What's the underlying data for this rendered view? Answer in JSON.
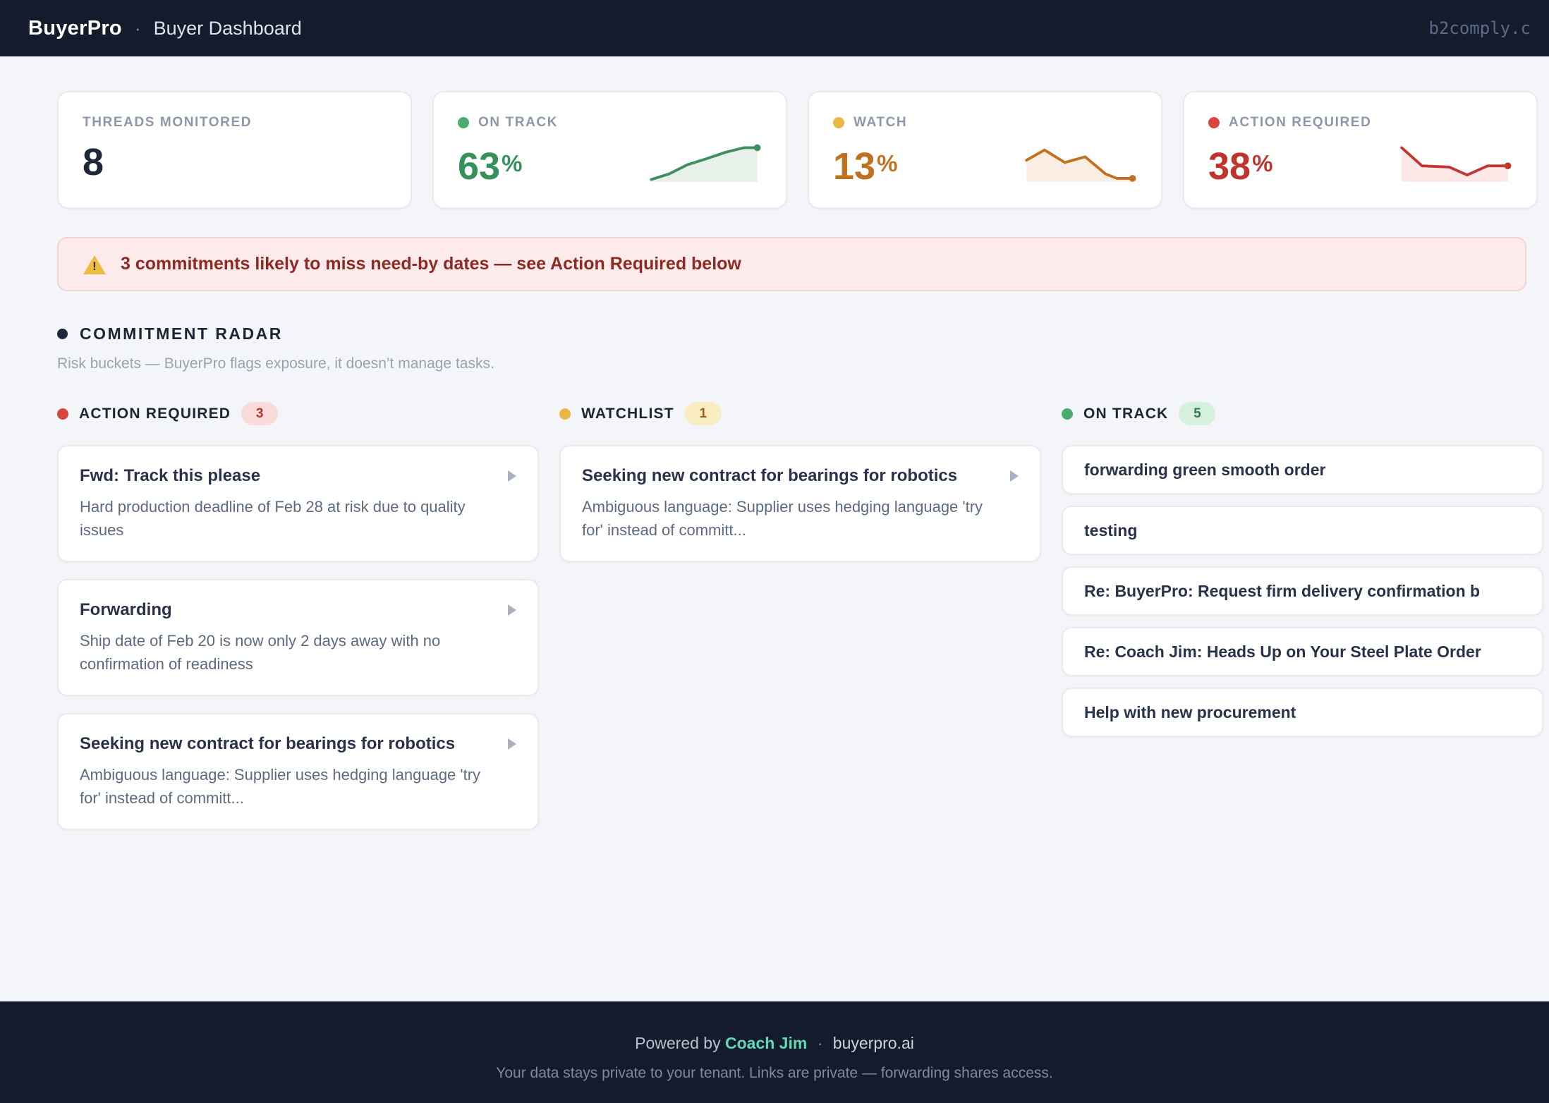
{
  "colors": {
    "header_bg": "#141b2c",
    "on_track": "#35915a",
    "watch": "#bf7120",
    "action_required": "#c0342e",
    "accent_teal": "#5fd9b4",
    "page_bg": "#f3f5f8"
  },
  "header": {
    "brand": "BuyerPro",
    "separator": "·",
    "title": "Buyer Dashboard",
    "tenant": "b2comply.c"
  },
  "stats": [
    {
      "label": "THREADS MONITORED",
      "value": "8",
      "unit": ""
    },
    {
      "label": "ON TRACK",
      "value": "63",
      "unit": "%",
      "spark": {
        "type": "area",
        "color": "#3e8f5f",
        "fill": "#e7f0e9",
        "points": [
          [
            2,
            32
          ],
          [
            18,
            27
          ],
          [
            34,
            19
          ],
          [
            50,
            14
          ],
          [
            68,
            8
          ],
          [
            84,
            4
          ],
          [
            96,
            4
          ]
        ]
      }
    },
    {
      "label": "WATCH",
      "value": "13",
      "unit": "%",
      "spark": {
        "type": "area",
        "color": "#c1711f",
        "fill": "#faeee3",
        "points": [
          [
            2,
            15
          ],
          [
            18,
            6
          ],
          [
            36,
            17
          ],
          [
            54,
            12
          ],
          [
            72,
            27
          ],
          [
            82,
            31
          ],
          [
            96,
            31
          ]
        ]
      }
    },
    {
      "label": "ACTION REQUIRED",
      "value": "38",
      "unit": "%",
      "spark": {
        "type": "area",
        "color": "#c23732",
        "fill": "#fbe8e7",
        "points": [
          [
            2,
            4
          ],
          [
            20,
            20
          ],
          [
            44,
            21
          ],
          [
            60,
            28
          ],
          [
            78,
            20
          ],
          [
            96,
            20
          ]
        ]
      }
    }
  ],
  "alert": {
    "icon_name": "warning-icon",
    "text": "3 commitments likely to miss need-by dates — see Action Required below"
  },
  "radar": {
    "title": "COMMITMENT RADAR",
    "subtitle": "Risk buckets — BuyerPro flags exposure, it doesn’t manage tasks."
  },
  "columns": [
    {
      "name": "ACTION REQUIRED",
      "count": "3",
      "cards": [
        {
          "title": "Fwd: Track this please",
          "body": "Hard production deadline of Feb 28 at risk due to quality issues"
        },
        {
          "title": "Forwarding",
          "body": "Ship date of Feb 20 is now only 2 days away with no confirmation of readiness"
        },
        {
          "title": "Seeking new contract for bearings for robotics",
          "body": "Ambiguous language: Supplier uses hedging language 'try for' instead of committ..."
        }
      ]
    },
    {
      "name": "WATCHLIST",
      "count": "1",
      "cards": [
        {
          "title": "Seeking new contract for bearings for robotics",
          "body": "Ambiguous language: Supplier uses hedging language 'try for' instead of committ..."
        }
      ]
    },
    {
      "name": "ON TRACK",
      "count": "5",
      "cards": [
        {
          "title": "forwarding green smooth order"
        },
        {
          "title": "testing"
        },
        {
          "title": "Re: BuyerPro: Request firm delivery confirmation b"
        },
        {
          "title": "Re: Coach Jim: Heads Up on Your Steel Plate Order"
        },
        {
          "title": "Help with new procurement"
        }
      ]
    }
  ],
  "footer": {
    "powered_by": "Powered by",
    "coach": "Coach Jim",
    "separator": "·",
    "site": "buyerpro.ai",
    "privacy": "Your data stays private to your tenant. Links are private — forwarding shares access."
  }
}
